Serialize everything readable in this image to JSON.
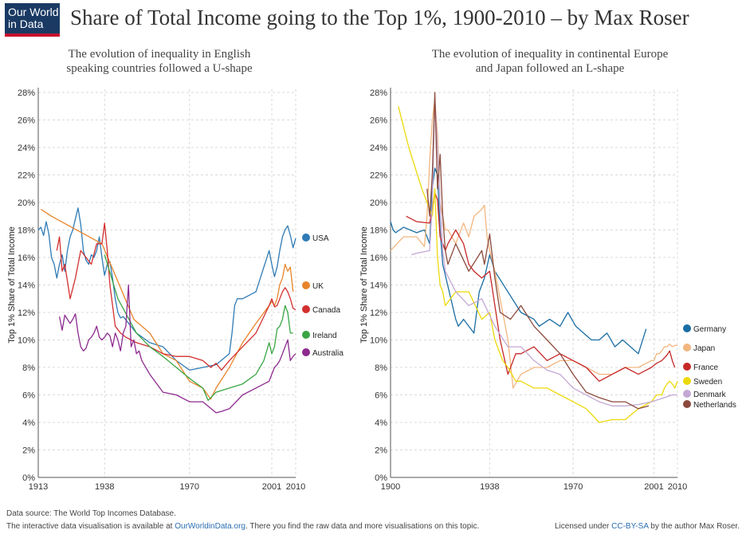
{
  "header": {
    "logo_line1": "Our World",
    "logo_line2": "in Data",
    "title": "Share of Total Income going to the Top 1%, 1900-2010 – by Max Roser"
  },
  "colors": {
    "USA": "#2f7bb6",
    "UK": "#e8842a",
    "Canada": "#d32f2f",
    "Ireland": "#3aa544",
    "Australia": "#8d2a8f",
    "Germany": "#1a6da3",
    "Japan": "#f2b67e",
    "France": "#c62828",
    "Sweden": "#ecd90a",
    "Denmark": "#c3a8d4",
    "Netherlands": "#8b4a3c"
  },
  "chart_data": [
    {
      "type": "line",
      "subtitle_line1": "The evolution of inequality in English",
      "subtitle_line2": "speaking countries followed a U-shape",
      "ylabel": "Top 1% Share of Total Income",
      "xlim": [
        1913,
        2010
      ],
      "ylim": [
        0,
        28
      ],
      "x_ticks": [
        1913,
        1938,
        1970,
        2001,
        2010
      ],
      "y_ticks": [
        "0%",
        "2%",
        "4%",
        "6%",
        "8%",
        "10%",
        "12%",
        "14%",
        "16%",
        "18%",
        "20%",
        "22%",
        "24%",
        "26%",
        "28%"
      ],
      "grid": true,
      "series": [
        {
          "name": "USA",
          "x": [
            1913,
            1914,
            1915,
            1916,
            1917,
            1918,
            1919,
            1920,
            1921,
            1922,
            1923,
            1924,
            1925,
            1926,
            1927,
            1928,
            1929,
            1930,
            1931,
            1932,
            1933,
            1934,
            1935,
            1936,
            1937,
            1938,
            1939,
            1940,
            1941,
            1942,
            1943,
            1944,
            1945,
            1950,
            1955,
            1960,
            1965,
            1970,
            1975,
            1980,
            1985,
            1986,
            1987,
            1988,
            1990,
            1995,
            2000,
            2001,
            2002,
            2003,
            2004,
            2005,
            2006,
            2007,
            2008,
            2009,
            2010
          ],
          "y": [
            18.0,
            18.2,
            17.6,
            18.6,
            17.7,
            16.0,
            15.5,
            14.5,
            15.5,
            16.2,
            15.0,
            16.5,
            17.5,
            18.0,
            18.8,
            19.6,
            18.4,
            16.5,
            15.8,
            15.5,
            16.2,
            16.0,
            16.5,
            17.5,
            16.0,
            14.7,
            15.5,
            15.7,
            14.5,
            13.0,
            12.0,
            11.6,
            11.7,
            10.5,
            9.8,
            9.5,
            8.5,
            7.8,
            8.0,
            8.2,
            9.0,
            10.5,
            12.5,
            13.0,
            13.0,
            13.5,
            16.5,
            15.5,
            14.6,
            15.3,
            16.5,
            17.5,
            18.0,
            18.3,
            17.6,
            16.7,
            17.4
          ]
        },
        {
          "name": "UK",
          "x": [
            1914,
            1918,
            1937,
            1949,
            1955,
            1960,
            1965,
            1970,
            1975,
            1978,
            1980,
            1985,
            1990,
            1995,
            2000,
            2001,
            2002,
            2003,
            2004,
            2005,
            2006,
            2007,
            2008,
            2009
          ],
          "y": [
            19.5,
            19.0,
            17.0,
            11.5,
            10.5,
            9.0,
            8.5,
            7.0,
            6.5,
            5.7,
            6.5,
            8.0,
            9.8,
            11.2,
            12.5,
            12.8,
            12.5,
            13.0,
            14.0,
            14.5,
            15.5,
            15.0,
            15.3,
            13.5
          ]
        },
        {
          "name": "Canada",
          "x": [
            1920,
            1921,
            1922,
            1923,
            1925,
            1927,
            1929,
            1931,
            1933,
            1935,
            1937,
            1938,
            1939,
            1940,
            1942,
            1944,
            1946,
            1948,
            1950,
            1955,
            1960,
            1965,
            1970,
            1975,
            1978,
            1980,
            1982,
            1985,
            1990,
            1995,
            2000,
            2001,
            2002,
            2003,
            2004,
            2005,
            2006,
            2007,
            2008,
            2009,
            2010
          ],
          "y": [
            16.5,
            17.5,
            15.0,
            15.5,
            13.0,
            14.5,
            16.5,
            16.0,
            15.5,
            17.0,
            17.0,
            18.5,
            16.5,
            14.0,
            11.0,
            10.5,
            10.2,
            10.0,
            9.8,
            9.5,
            9.0,
            8.8,
            8.8,
            8.5,
            8.0,
            8.3,
            7.8,
            8.5,
            9.5,
            10.5,
            12.5,
            13.0,
            12.4,
            12.5,
            13.0,
            13.5,
            13.8,
            13.5,
            13.0,
            12.3,
            12.2
          ]
        },
        {
          "name": "Ireland",
          "x": [
            1938,
            1943,
            1950,
            1955,
            1960,
            1965,
            1970,
            1975,
            1977,
            1980,
            1985,
            1990,
            1995,
            1998,
            2000,
            2001,
            2002,
            2003,
            2004,
            2005,
            2006,
            2007,
            2008,
            2009
          ],
          "y": [
            16.2,
            13.0,
            10.5,
            9.5,
            8.8,
            8.0,
            7.2,
            6.5,
            5.6,
            6.2,
            6.5,
            6.8,
            7.5,
            8.5,
            9.8,
            9.0,
            9.5,
            10.8,
            11.0,
            11.5,
            12.5,
            12.0,
            10.5,
            10.5
          ]
        },
        {
          "name": "Australia",
          "x": [
            1921,
            1922,
            1923,
            1924,
            1925,
            1926,
            1927,
            1928,
            1929,
            1930,
            1931,
            1932,
            1933,
            1934,
            1935,
            1936,
            1937,
            1938,
            1939,
            1940,
            1941,
            1942,
            1943,
            1944,
            1945,
            1946,
            1947,
            1948,
            1949,
            1950,
            1951,
            1952,
            1955,
            1960,
            1965,
            1970,
            1975,
            1980,
            1982,
            1985,
            1990,
            1995,
            2000,
            2001,
            2002,
            2003,
            2004,
            2005,
            2006,
            2007,
            2008,
            2009,
            2010
          ],
          "y": [
            11.7,
            10.7,
            11.8,
            11.5,
            11.2,
            11.5,
            11.9,
            10.5,
            9.5,
            9.2,
            9.4,
            10.0,
            10.2,
            10.5,
            11.0,
            10.2,
            10.0,
            10.2,
            10.5,
            10.3,
            9.5,
            10.5,
            10.0,
            9.2,
            10.5,
            11.0,
            14.0,
            9.5,
            10.0,
            9.0,
            9.2,
            8.5,
            7.5,
            6.2,
            6.0,
            5.5,
            5.5,
            4.7,
            4.8,
            5.0,
            6.0,
            6.5,
            7.0,
            7.5,
            8.0,
            8.2,
            8.5,
            9.0,
            9.5,
            10.0,
            8.5,
            8.8,
            9.0
          ]
        }
      ]
    },
    {
      "type": "line",
      "subtitle_line1": "The evolution of inequality in continental Europe",
      "subtitle_line2": "and Japan followed an L-shape",
      "ylabel": "Top 1% Share of Total Income",
      "xlim": [
        1900,
        2010
      ],
      "ylim": [
        0,
        28
      ],
      "x_ticks": [
        1900,
        1938,
        1970,
        2001,
        2010
      ],
      "y_ticks": [
        "0%",
        "2%",
        "4%",
        "6%",
        "8%",
        "10%",
        "12%",
        "14%",
        "16%",
        "18%",
        "20%",
        "22%",
        "24%",
        "26%",
        "28%"
      ],
      "grid": true,
      "series": [
        {
          "name": "Germany",
          "x": [
            1900,
            1901,
            1902,
            1905,
            1910,
            1913,
            1914,
            1915,
            1916,
            1917,
            1918,
            1919,
            1920,
            1925,
            1926,
            1928,
            1932,
            1934,
            1936,
            1938,
            1940,
            1950,
            1955,
            1957,
            1961,
            1965,
            1968,
            1971,
            1974,
            1977,
            1980,
            1983,
            1986,
            1989,
            1992,
            1995,
            1998
          ],
          "y": [
            18.6,
            18.0,
            17.8,
            18.2,
            17.8,
            18.0,
            17.5,
            17.0,
            21.0,
            22.5,
            22.0,
            18.0,
            15.5,
            11.5,
            11.0,
            11.5,
            10.5,
            13.5,
            14.5,
            16.2,
            15.0,
            12.0,
            11.5,
            11.0,
            11.5,
            11.0,
            12.0,
            11.0,
            10.5,
            10.0,
            10.0,
            10.5,
            9.5,
            10.0,
            9.5,
            9.0,
            10.8
          ]
        },
        {
          "name": "Japan",
          "x": [
            1900,
            1905,
            1910,
            1913,
            1914,
            1915,
            1916,
            1917,
            1918,
            1919,
            1920,
            1921,
            1922,
            1925,
            1928,
            1930,
            1932,
            1935,
            1936,
            1937,
            1938,
            1940,
            1945,
            1947,
            1950,
            1955,
            1960,
            1965,
            1970,
            1975,
            1980,
            1985,
            1990,
            1995,
            2000,
            2001,
            2002,
            2003,
            2004,
            2005,
            2006,
            2007,
            2008,
            2009,
            2010
          ],
          "y": [
            16.5,
            17.5,
            17.5,
            16.8,
            19.0,
            23.0,
            26.0,
            27.5,
            25.0,
            20.0,
            19.0,
            18.0,
            18.0,
            17.0,
            18.5,
            17.5,
            19.0,
            19.5,
            19.8,
            17.5,
            16.5,
            15.0,
            10.0,
            6.5,
            7.5,
            8.0,
            8.0,
            8.5,
            8.5,
            8.0,
            7.5,
            7.5,
            8.0,
            8.0,
            8.5,
            8.5,
            9.0,
            9.0,
            9.2,
            9.5,
            9.5,
            9.7,
            9.5,
            9.6,
            9.6
          ]
        },
        {
          "name": "France",
          "x": [
            1906,
            1910,
            1915,
            1916,
            1917,
            1918,
            1919,
            1920,
            1921,
            1922,
            1925,
            1928,
            1930,
            1932,
            1935,
            1938,
            1940,
            1942,
            1945,
            1948,
            1950,
            1955,
            1960,
            1965,
            1970,
            1975,
            1980,
            1985,
            1990,
            1995,
            1998,
            2000,
            2002,
            2004,
            2005,
            2006,
            2007,
            2008,
            2009
          ],
          "y": [
            19.0,
            18.6,
            18.5,
            19.5,
            20.7,
            20.2,
            17.5,
            17.0,
            16.5,
            17.0,
            18.0,
            17.0,
            15.5,
            15.0,
            14.5,
            15.0,
            12.5,
            10.0,
            7.5,
            9.0,
            9.0,
            9.5,
            8.5,
            9.0,
            8.5,
            8.0,
            7.0,
            7.5,
            8.0,
            7.5,
            7.8,
            8.0,
            8.3,
            8.5,
            8.7,
            8.9,
            9.2,
            8.5,
            8.0
          ]
        },
        {
          "name": "Sweden",
          "x": [
            1903,
            1907,
            1912,
            1916,
            1917,
            1918,
            1919,
            1920,
            1921,
            1925,
            1930,
            1935,
            1938,
            1940,
            1943,
            1945,
            1948,
            1950,
            1955,
            1960,
            1965,
            1970,
            1975,
            1980,
            1985,
            1990,
            1995,
            2000,
            2002,
            2004,
            2005,
            2006,
            2007,
            2008,
            2009,
            2010
          ],
          "y": [
            27.0,
            24.0,
            21.0,
            19.0,
            21.0,
            16.0,
            14.0,
            13.5,
            12.5,
            13.5,
            13.5,
            11.5,
            12.0,
            10.0,
            8.5,
            8.0,
            7.0,
            7.0,
            6.5,
            6.5,
            6.0,
            5.5,
            5.0,
            4.0,
            4.2,
            4.2,
            5.0,
            5.5,
            6.0,
            6.0,
            6.5,
            6.8,
            7.0,
            6.8,
            6.5,
            7.0
          ]
        },
        {
          "name": "Denmark",
          "x": [
            1908,
            1910,
            1915,
            1916,
            1917,
            1918,
            1919,
            1920,
            1921,
            1925,
            1930,
            1935,
            1940,
            1945,
            1950,
            1955,
            1960,
            1965,
            1970,
            1975,
            1980,
            1985,
            1990,
            1995,
            2000,
            2005,
            2008,
            2010
          ],
          "y": [
            16.2,
            16.3,
            16.5,
            20.0,
            27.5,
            24.0,
            20.0,
            16.5,
            15.0,
            13.5,
            12.5,
            13.0,
            11.0,
            9.5,
            9.5,
            8.5,
            7.8,
            7.5,
            6.5,
            6.0,
            5.5,
            5.2,
            5.2,
            5.3,
            5.5,
            5.8,
            6.0,
            6.0
          ]
        },
        {
          "name": "Netherlands",
          "x": [
            1914,
            1915,
            1916,
            1917,
            1918,
            1919,
            1920,
            1921,
            1922,
            1925,
            1930,
            1935,
            1936,
            1938,
            1940,
            1942,
            1946,
            1950,
            1955,
            1960,
            1965,
            1970,
            1975,
            1980,
            1985,
            1990,
            1995,
            1999
          ],
          "y": [
            21.0,
            19.0,
            22.0,
            28.0,
            21.0,
            23.5,
            19.0,
            16.5,
            15.5,
            17.0,
            15.0,
            16.5,
            15.5,
            17.7,
            14.5,
            12.0,
            11.5,
            12.5,
            11.0,
            10.0,
            9.0,
            7.5,
            6.2,
            5.8,
            5.5,
            5.5,
            5.0,
            5.2
          ]
        }
      ]
    }
  ],
  "footer": {
    "source": "Data source: The World Top Incomes Database.",
    "interactive_prefix": "The interactive data visualisation is available at ",
    "interactive_link": "OurWorldinData.org",
    "interactive_suffix": ". There you find the raw data and more visualisations on this topic.",
    "license_prefix": "Licensed under ",
    "license_link": "CC-BY-SA",
    "license_suffix": " by the author Max Roser."
  }
}
